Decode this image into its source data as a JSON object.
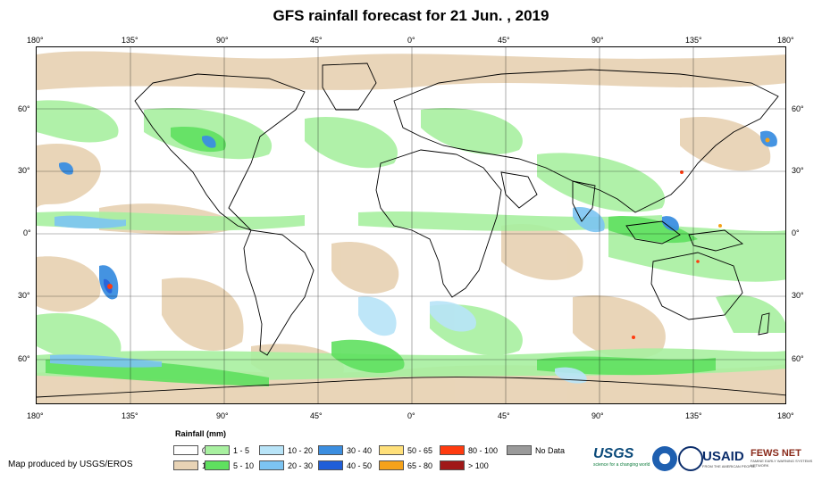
{
  "title": "GFS rainfall forecast for 21 Jun. , 2019",
  "map": {
    "lon_ticks": [
      "180°",
      "135°",
      "90°",
      "45°",
      "0°",
      "45°",
      "90°",
      "135°",
      "180°"
    ],
    "lat_ticks": [
      "60°",
      "30°",
      "0°",
      "30°",
      "60°"
    ]
  },
  "legend": {
    "title": "Rainfall (mm)",
    "items": [
      {
        "label": "0",
        "color": "#ffffff"
      },
      {
        "label": "1",
        "color": "#e8d3b5"
      },
      {
        "label": "1 - 5",
        "color": "#a8f0a0"
      },
      {
        "label": "5 - 10",
        "color": "#5fe05f"
      },
      {
        "label": "10 - 20",
        "color": "#b8e4f8"
      },
      {
        "label": "20 - 30",
        "color": "#7cc4f2"
      },
      {
        "label": "30 - 40",
        "color": "#3b8ee0"
      },
      {
        "label": "40 - 50",
        "color": "#1f5ed8"
      },
      {
        "label": "50 - 65",
        "color": "#ffe07a"
      },
      {
        "label": "65 - 80",
        "color": "#f5a21a"
      },
      {
        "label": "80 - 100",
        "color": "#ff3b0f"
      },
      {
        "label": "> 100",
        "color": "#a01818"
      },
      {
        "label": "No Data",
        "color": "#9a9a9a"
      }
    ]
  },
  "credit": "Map produced by USGS/EROS",
  "logos": {
    "usgs": "USGS",
    "usgs_tagline": "science for a changing world",
    "usaid": "USAID",
    "usaid_tagline": "FROM THE AMERICAN PEOPLE",
    "fews": "FEWS NET",
    "fews_tagline": "FAMINE EARLY WARNING SYSTEMS NETWORK"
  }
}
